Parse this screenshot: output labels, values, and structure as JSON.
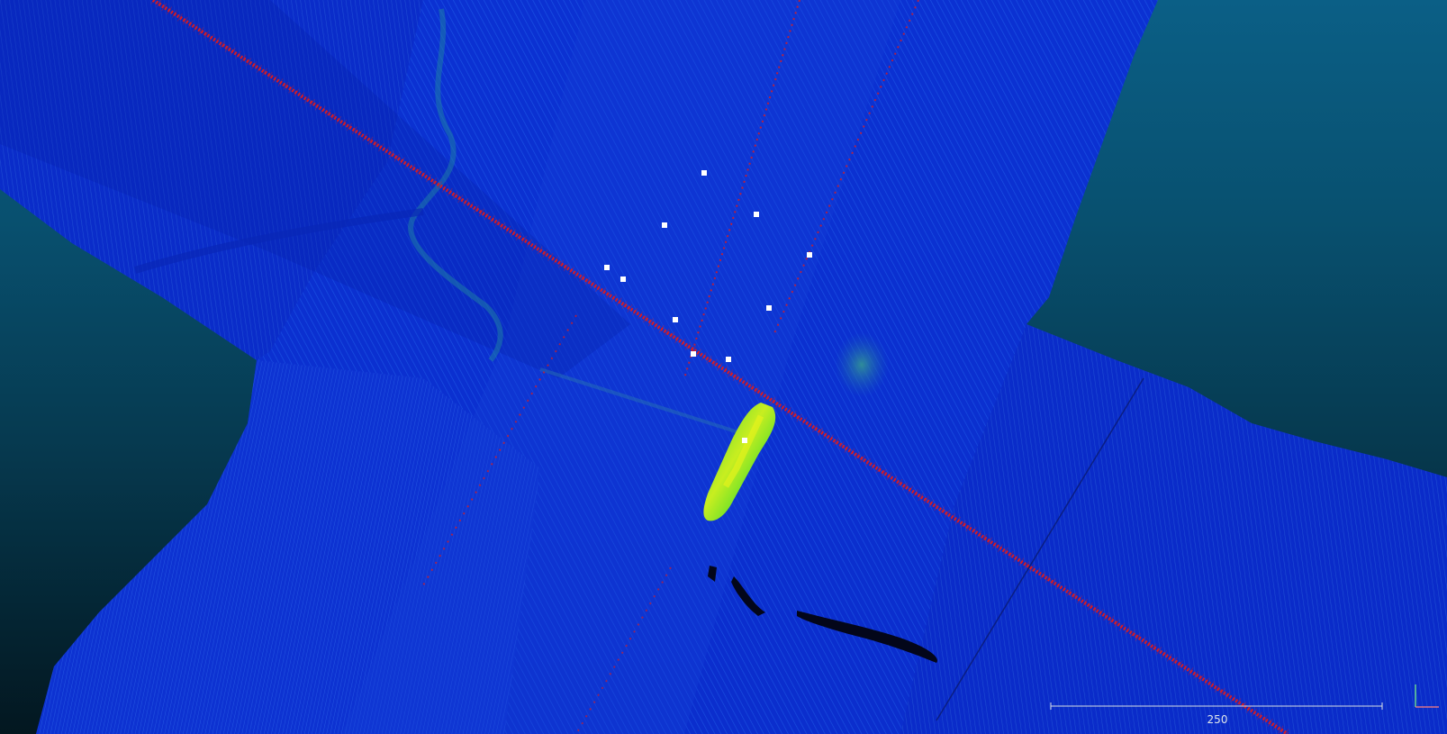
{
  "view": {
    "background_top_color": "#0b5f86",
    "background_bottom_color": "#031720",
    "pointcloud_color": "#0a2ed8",
    "trackline_color": "#e31a1a",
    "highlight_object_color": "#7cf01e",
    "marker_color": "#ffffff"
  },
  "scale_bar": {
    "label": "250"
  },
  "axis_gizmo": {
    "icon": "axis-trihedron-icon",
    "x_color": "#ff8080",
    "y_color": "#80ff80"
  },
  "markers": {
    "count": 11,
    "icon": "square-marker-icon"
  }
}
